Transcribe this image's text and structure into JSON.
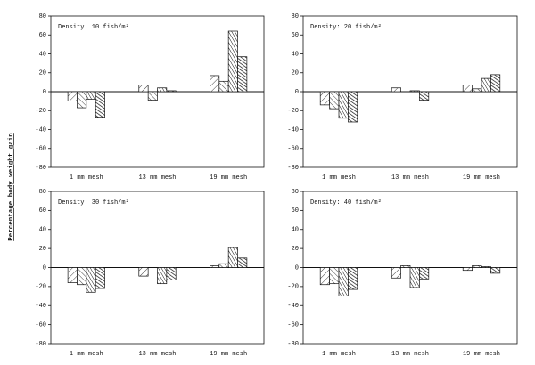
{
  "y_label": "Percentage body weight gain",
  "chart_data": [
    {
      "type": "bar",
      "annotation": "Density: 10 fish/m²",
      "categories": [
        "1 mm mesh",
        "13 mm mesh",
        "19 mm mesh"
      ],
      "series": [
        {
          "color": "#111111",
          "values": [
            -10,
            7,
            17
          ]
        },
        {
          "color": "#111111",
          "values": [
            -17,
            -9,
            11
          ]
        },
        {
          "color": "#111111",
          "values": [
            -8,
            4,
            64
          ]
        },
        {
          "color": "#111111",
          "values": [
            -27,
            1,
            37
          ]
        }
      ],
      "ylim": [
        -80,
        80
      ],
      "yticks": [
        -80,
        -60,
        -40,
        -20,
        0,
        20,
        40,
        60,
        80
      ]
    },
    {
      "type": "bar",
      "annotation": "Density: 20 fish/m²",
      "categories": [
        "1 mm mesh",
        "13 mm mesh",
        "19 mm mesh"
      ],
      "series": [
        {
          "color": "#111111",
          "values": [
            -14,
            4,
            7
          ]
        },
        {
          "color": "#111111",
          "values": [
            -18,
            0,
            3
          ]
        },
        {
          "color": "#111111",
          "values": [
            -28,
            1,
            14
          ]
        },
        {
          "color": "#111111",
          "values": [
            -32,
            -9,
            18
          ]
        }
      ],
      "ylim": [
        -80,
        80
      ],
      "yticks": [
        -80,
        -60,
        -40,
        -20,
        0,
        20,
        40,
        60,
        80
      ]
    },
    {
      "type": "bar",
      "annotation": "Density: 30 fish/m²",
      "categories": [
        "1 mm mesh",
        "13 mm mesh",
        "19 mm mesh"
      ],
      "series": [
        {
          "color": "#111111",
          "values": [
            -16,
            -9,
            2
          ]
        },
        {
          "color": "#111111",
          "values": [
            -18,
            0,
            4
          ]
        },
        {
          "color": "#111111",
          "values": [
            -26,
            -17,
            21
          ]
        },
        {
          "color": "#111111",
          "values": [
            -22,
            -13,
            10
          ]
        }
      ],
      "ylim": [
        -80,
        80
      ],
      "yticks": [
        -80,
        -60,
        -40,
        -20,
        0,
        20,
        40,
        60,
        80
      ]
    },
    {
      "type": "bar",
      "annotation": "Density: 40 fish/m²",
      "categories": [
        "1 mm mesh",
        "13 mm mesh",
        "19 mm mesh"
      ],
      "series": [
        {
          "color": "#111111",
          "values": [
            -18,
            -11,
            -3
          ]
        },
        {
          "color": "#111111",
          "values": [
            -17,
            2,
            2
          ]
        },
        {
          "color": "#111111",
          "values": [
            -30,
            -21,
            1
          ]
        },
        {
          "color": "#111111",
          "values": [
            -23,
            -12,
            -6
          ]
        }
      ],
      "ylim": [
        -80,
        80
      ],
      "yticks": [
        -80,
        -60,
        -40,
        -20,
        0,
        20,
        40,
        60,
        80
      ]
    }
  ]
}
